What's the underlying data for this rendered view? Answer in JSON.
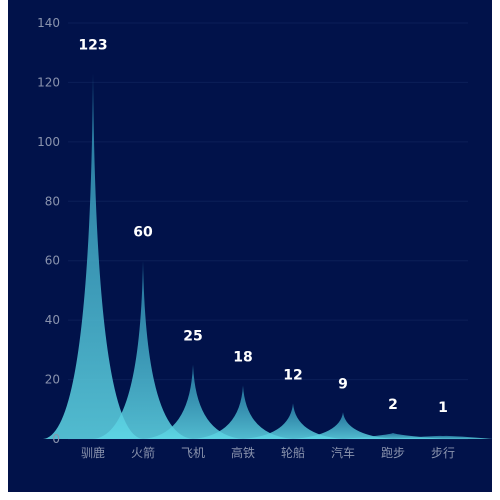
{
  "colors": {
    "background": "#01124a",
    "grid": "#0c1f58",
    "axis_text": "#8a93ad",
    "label_text": "#ffffff",
    "fill_top": "#3aa6c4",
    "fill_bottom": "#5fd8e6"
  },
  "chart_data": {
    "type": "area",
    "shape": "pictorial-spike",
    "categories": [
      "驯鹿",
      "火箭",
      "飞机",
      "高铁",
      "轮船",
      "汽车",
      "跑步",
      "步行"
    ],
    "values": [
      123,
      60,
      25,
      18,
      12,
      9,
      2,
      1
    ],
    "ylim": [
      0,
      140
    ],
    "yticks": [
      0,
      20,
      40,
      60,
      80,
      100,
      120,
      140
    ],
    "grid": true,
    "data_labels": true,
    "title": "",
    "xlabel": "",
    "ylabel": ""
  }
}
